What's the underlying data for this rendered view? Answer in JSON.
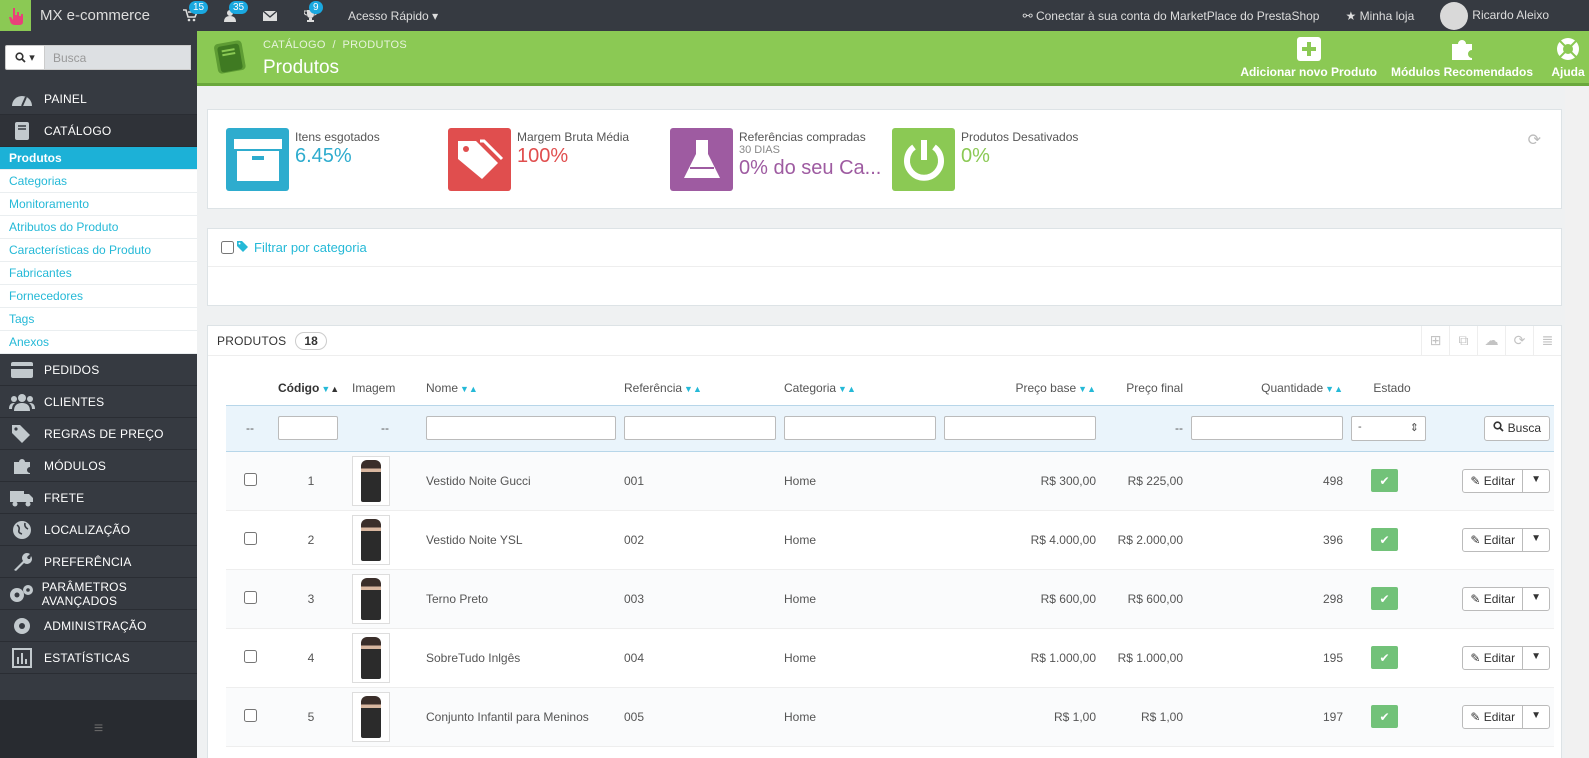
{
  "topbar": {
    "brand": "MX e-commerce",
    "cart_badge": "15",
    "customers_badge": "35",
    "trophy_badge": "9",
    "quick_access": "Acesso Rápido",
    "marketplace": "Conectar à sua conta do MarketPlace do PrestaShop",
    "my_shop": "Minha loja",
    "user": "Ricardo Aleixo"
  },
  "sidebar": {
    "search_placeholder": "Busca",
    "items": [
      {
        "label": "PAINEL"
      },
      {
        "label": "CATÁLOGO"
      },
      {
        "label": "PEDIDOS"
      },
      {
        "label": "CLIENTES"
      },
      {
        "label": "REGRAS DE PREÇO"
      },
      {
        "label": "MÓDULOS"
      },
      {
        "label": "FRETE"
      },
      {
        "label": "LOCALIZAÇÃO"
      },
      {
        "label": "PREFERÊNCIA"
      },
      {
        "label": "PARÂMETROS AVANÇADOS"
      },
      {
        "label": "ADMINISTRAÇÃO"
      },
      {
        "label": "ESTATÍSTICAS"
      }
    ],
    "submenu": [
      "Produtos",
      "Categorias",
      "Monitoramento",
      "Atributos do Produto",
      "Características do Produto",
      "Fabricantes",
      "Fornecedores",
      "Tags",
      "Anexos"
    ]
  },
  "header": {
    "breadcrumb_1": "CATÁLOGO",
    "breadcrumb_sep": "/",
    "breadcrumb_2": "PRODUTOS",
    "title": "Produtos",
    "add_product": "Adicionar novo Produto",
    "recommended_modules": "Módulos Recomendados",
    "help": "Ajuda"
  },
  "kpis": [
    {
      "label": "Itens esgotados",
      "sub": "",
      "value": "6.45%",
      "color": "#2eacce"
    },
    {
      "label": "Margem Bruta Média",
      "sub": "",
      "value": "100%",
      "color": "#e04e4e"
    },
    {
      "label": "Referências compradas",
      "sub": "30 DIAS",
      "value": "0% do seu Ca...",
      "color": "#9e5ba1"
    },
    {
      "label": "Produtos Desativados",
      "sub": "",
      "value": "0%",
      "color": "#8bc954"
    }
  ],
  "filter": {
    "label": "Filtrar por categoria"
  },
  "products": {
    "title": "PRODUTOS",
    "count": "18",
    "columns": {
      "code": "Código",
      "image": "Imagem",
      "name": "Nome",
      "reference": "Referência",
      "category": "Categoria",
      "base_price": "Preço base",
      "final_price": "Preço final",
      "quantity": "Quantidade",
      "status": "Estado"
    },
    "filter_row": {
      "dash": "--",
      "status_select": "-",
      "search_button": "Busca"
    },
    "edit_label": "Editar",
    "rows": [
      {
        "code": "1",
        "name": "Vestido Noite Gucci",
        "reference": "001",
        "category": "Home",
        "base_price": "R$ 300,00",
        "final_price": "R$ 225,00",
        "quantity": "498"
      },
      {
        "code": "2",
        "name": "Vestido Noite YSL",
        "reference": "002",
        "category": "Home",
        "base_price": "R$ 4.000,00",
        "final_price": "R$ 2.000,00",
        "quantity": "396"
      },
      {
        "code": "3",
        "name": "Terno Preto",
        "reference": "003",
        "category": "Home",
        "base_price": "R$ 600,00",
        "final_price": "R$ 600,00",
        "quantity": "298"
      },
      {
        "code": "4",
        "name": "SobreTudo Inlgês",
        "reference": "004",
        "category": "Home",
        "base_price": "R$ 1.000,00",
        "final_price": "R$ 1.000,00",
        "quantity": "195"
      },
      {
        "code": "5",
        "name": "Conjunto Infantil para Meninos",
        "reference": "005",
        "category": "Home",
        "base_price": "R$ 1,00",
        "final_price": "R$ 1,00",
        "quantity": "197"
      }
    ]
  }
}
